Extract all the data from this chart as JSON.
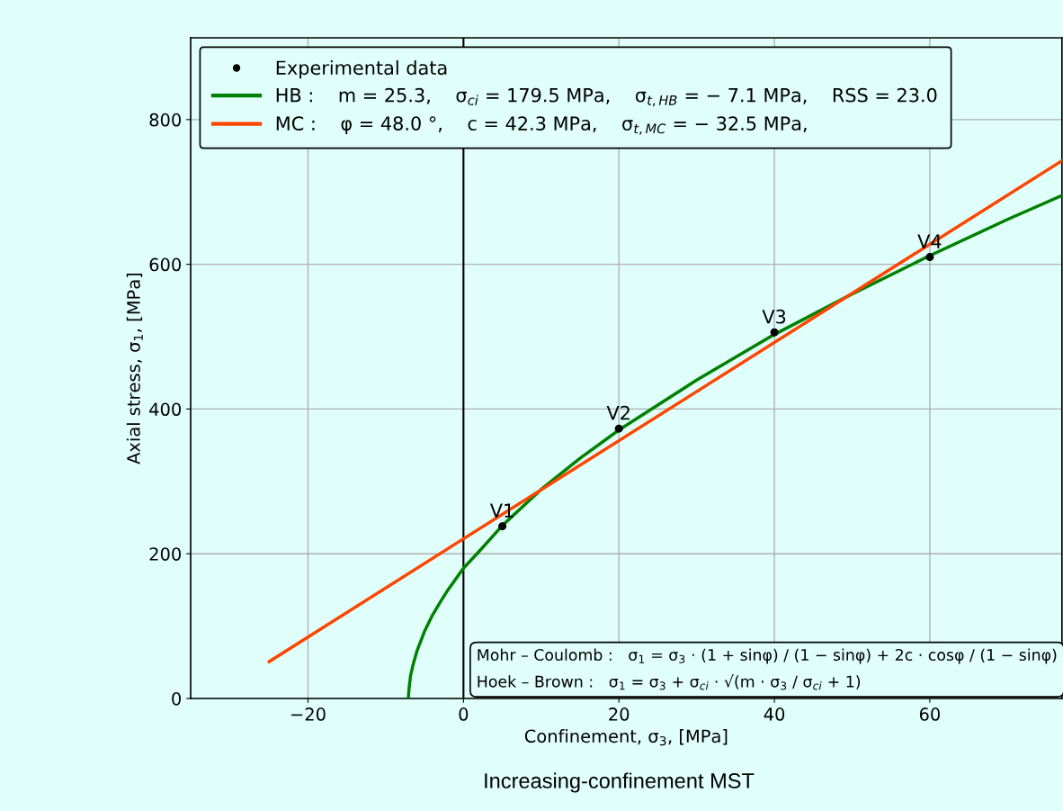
{
  "chart_data": {
    "type": "line",
    "xlabel": "Confinement, σ$_{3}$, [MPa]",
    "ylabel": "Axial stress, σ$_{1}$, [MPa]",
    "xlim": [
      -35.1,
      77
    ],
    "ylim": [
      0,
      913
    ],
    "xticks": [
      {
        "value": -20,
        "label": "−20"
      },
      0,
      20,
      40,
      60
    ],
    "yticks": [
      0,
      200,
      400,
      600,
      800
    ],
    "grid": true,
    "legend": "top left",
    "series": [
      {
        "name": "Experimental data",
        "type": "scatter",
        "marker": "circle",
        "color": "#000000",
        "x": [
          5,
          20,
          40,
          60
        ],
        "values": [
          238,
          373,
          506,
          610
        ]
      },
      {
        "name": "HB :    m = 25.3,    σ$_{ci}$ = 179.5 MPa,    σ$_{t,HB}$ = − 7.1 MPa,    RSS = 23.0",
        "marker": "none",
        "color": "#008000",
        "x": [
          -7.1,
          -7,
          -6.8,
          -6.5,
          -6,
          -5,
          -4,
          -3,
          -2,
          0,
          2,
          5,
          10,
          15,
          20,
          30,
          40,
          50,
          60,
          70,
          77
        ],
        "values": [
          0,
          14,
          32,
          46,
          65,
          93,
          115,
          133,
          150,
          180,
          203,
          239,
          289,
          332,
          371,
          440,
          503,
          559,
          612,
          662,
          695
        ]
      },
      {
        "name": "MC :    φ = 48.0 °,    c = 42.3 MPa,    σ$_{t,MC}$ = − 32.5 MPa,",
        "marker": "none",
        "color": "#ff4500",
        "x": [
          -25,
          77
        ],
        "values": [
          51,
          743
        ]
      }
    ],
    "ref_lines": [
      {
        "axis": "x",
        "value": 0,
        "color": "#000000"
      }
    ],
    "annotations": [
      {
        "text": "V1",
        "x": 5,
        "y": 238
      },
      {
        "text": "V2",
        "x": 20,
        "y": 373
      },
      {
        "text": "V3",
        "x": 40,
        "y": 506
      },
      {
        "text": "V4",
        "x": 60,
        "y": 610
      },
      "Mohr – Coulomb :   σ$_{1}$ = σ$_{3}$ · (1 + sinφ) / (1 − sinφ) + 2c · cosφ / (1 − sinφ)\nHoek – Brown :   σ$_{1}$ = σ$_{3}$ + σ$_{ci}$ · √(m · σ$_{3}$ / σ$_{ci}$ + 1)",
      "Increasing-confinement MST"
    ]
  }
}
